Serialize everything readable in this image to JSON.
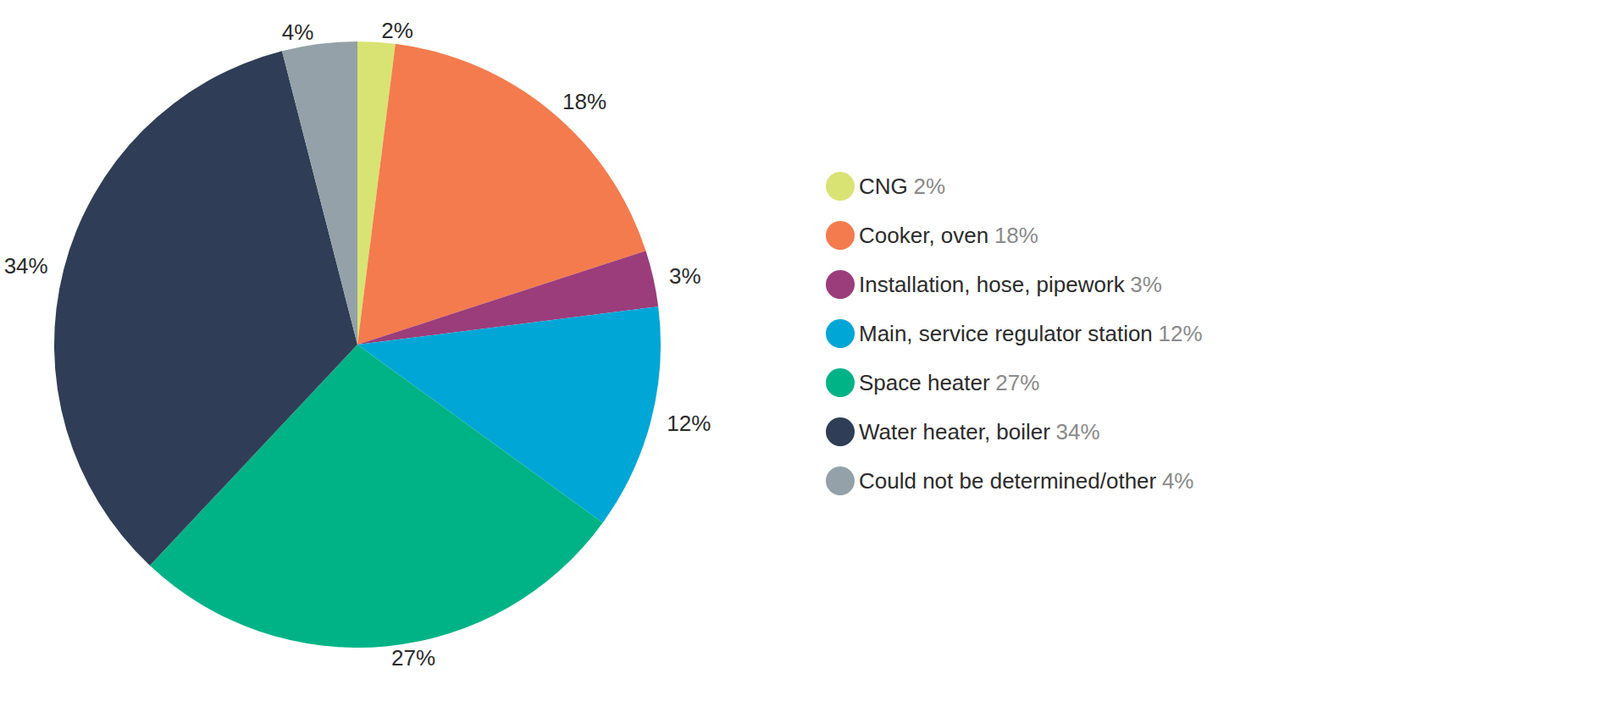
{
  "chart_data": {
    "type": "pie",
    "categories": [
      "CNG",
      "Cooker, oven",
      "Installation, hose, pipework",
      "Main, service regulator station",
      "Space heater",
      "Water heater, boiler",
      "Could not be determined/other"
    ],
    "values": [
      2,
      18,
      3,
      12,
      27,
      34,
      4
    ],
    "value_labels": [
      "2%",
      "18%",
      "3%",
      "12%",
      "27%",
      "34%",
      "4%"
    ],
    "colors": [
      "#d9e374",
      "#f47b4e",
      "#9b3d7a",
      "#00a6d6",
      "#00b386",
      "#2f3e56",
      "#94a1a8"
    ],
    "data_labels": true,
    "legend": "right"
  }
}
